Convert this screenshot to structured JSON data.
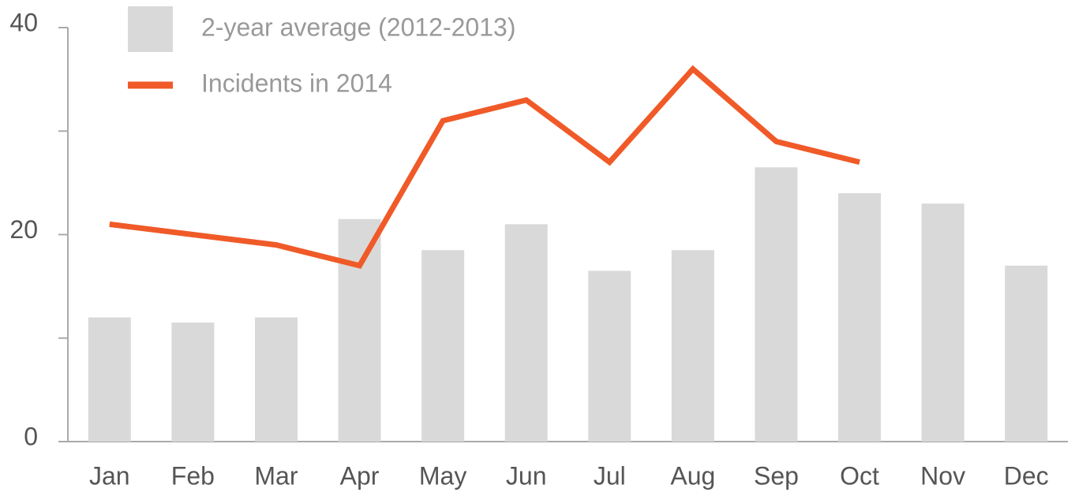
{
  "chart_data": {
    "type": "bar_line",
    "categories": [
      "Jan",
      "Feb",
      "Mar",
      "Apr",
      "May",
      "Jun",
      "Jul",
      "Aug",
      "Sep",
      "Oct",
      "Nov",
      "Dec"
    ],
    "series": [
      {
        "name": "2-year average (2012-2013)",
        "type": "bar",
        "color": "#d9d9d9",
        "values": [
          12,
          11.5,
          12,
          21.5,
          18.5,
          21,
          16.5,
          18.5,
          26.5,
          24,
          23,
          17
        ]
      },
      {
        "name": "Incidents in 2014",
        "type": "line",
        "color": "#f05a28",
        "values": [
          21,
          20,
          19,
          17,
          31,
          33,
          27,
          36,
          29,
          27,
          null,
          null
        ]
      }
    ],
    "ylim": [
      0,
      40
    ],
    "yticks": [
      0,
      20,
      40
    ],
    "yminor_ticks": [
      10,
      30
    ],
    "grid": false,
    "legend": "top-left"
  }
}
